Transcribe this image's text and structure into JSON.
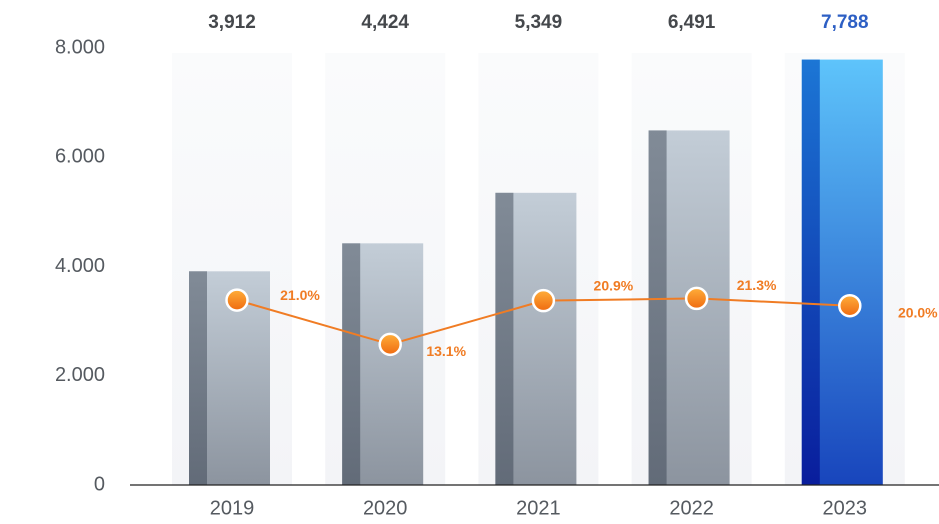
{
  "chart_data": {
    "type": "bar",
    "categories": [
      "2019",
      "2020",
      "2021",
      "2022",
      "2023"
    ],
    "series": [
      {
        "type": "bar",
        "colors": [
          "#c3cdd7",
          "#c3cdd7",
          "#c3cdd7",
          "#c3cdd7",
          "#5ec4fb"
        ],
        "values": [
          3912,
          4424,
          5349,
          6491,
          7788
        ],
        "value_labels": [
          "3,912",
          "4,424",
          "5,349",
          "6,491",
          "7,788"
        ]
      },
      {
        "type": "line",
        "axis": "y2",
        "color": "#f07c24",
        "values": [
          21.0,
          13.1,
          20.9,
          21.3,
          20.0
        ],
        "value_labels": [
          "21.0%",
          "13.1%",
          "20.9%",
          "21.3%",
          "20.0%"
        ]
      }
    ],
    "ylim": [
      0,
      8000
    ],
    "yticks": [
      0,
      {
        "value": 2000,
        "label": "2.000"
      },
      {
        "value": 4000,
        "label": "4.000"
      },
      {
        "value": 6000,
        "label": "6.000"
      },
      {
        "value": 8000,
        "label": "8.000"
      }
    ],
    "y2lim": [
      -12,
      66
    ]
  }
}
